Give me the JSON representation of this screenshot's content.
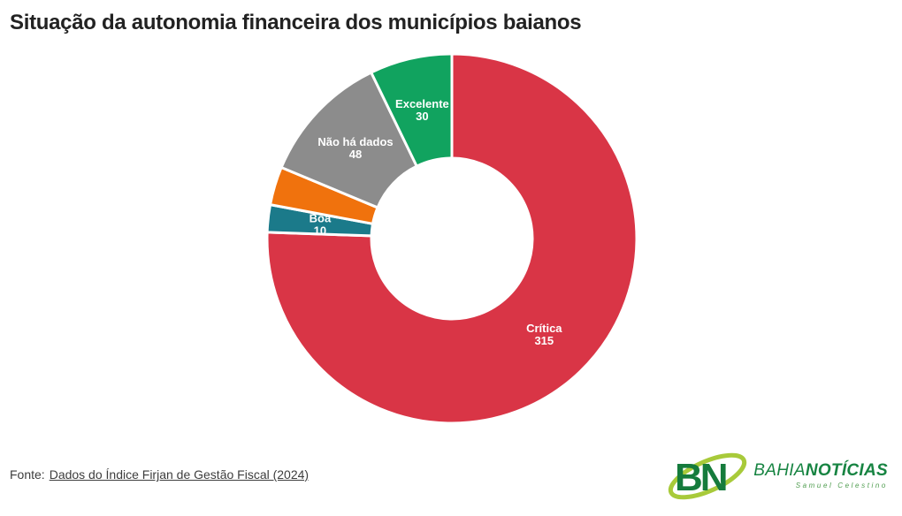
{
  "title": "Situação da autonomia financeira dos municípios baianos",
  "chart_data": {
    "type": "pie",
    "subtype": "donut",
    "title": "Situação da autonomia financeira dos municípios baianos",
    "direction": "clockwise",
    "start_angle_deg": 0,
    "total": 417,
    "inner_radius_ratio": 0.435,
    "label_color": "#ffffff",
    "slices": [
      {
        "label": "Crítica",
        "value": 315,
        "color": "#d93546",
        "label_visible": true
      },
      {
        "label": "Boa",
        "value": 10,
        "color": "#1b7a8a",
        "label_visible": true
      },
      {
        "label": "",
        "value": 14,
        "color": "#f0720d",
        "label_visible": false,
        "value_estimated": true
      },
      {
        "label": "Não há dados",
        "value": 48,
        "color": "#8c8c8c",
        "label_visible": true
      },
      {
        "label": "Excelente",
        "value": 30,
        "color": "#11a35f",
        "label_visible": true
      }
    ]
  },
  "footer": {
    "prefix": "Fonte:",
    "link_text": "Dados do Índice Firjan de Gestão Fiscal (2024)"
  },
  "logo": {
    "mark": "BN",
    "brand_regular": "BAHIA",
    "brand_bold": "NOTÍCIAS",
    "tagline": "Samuel Celestino",
    "colors": {
      "letters_green": "#157b3c",
      "brand_green": "#178442",
      "tagline_green": "#4f9d4f",
      "swoosh_green": "#a8ca3a"
    }
  }
}
